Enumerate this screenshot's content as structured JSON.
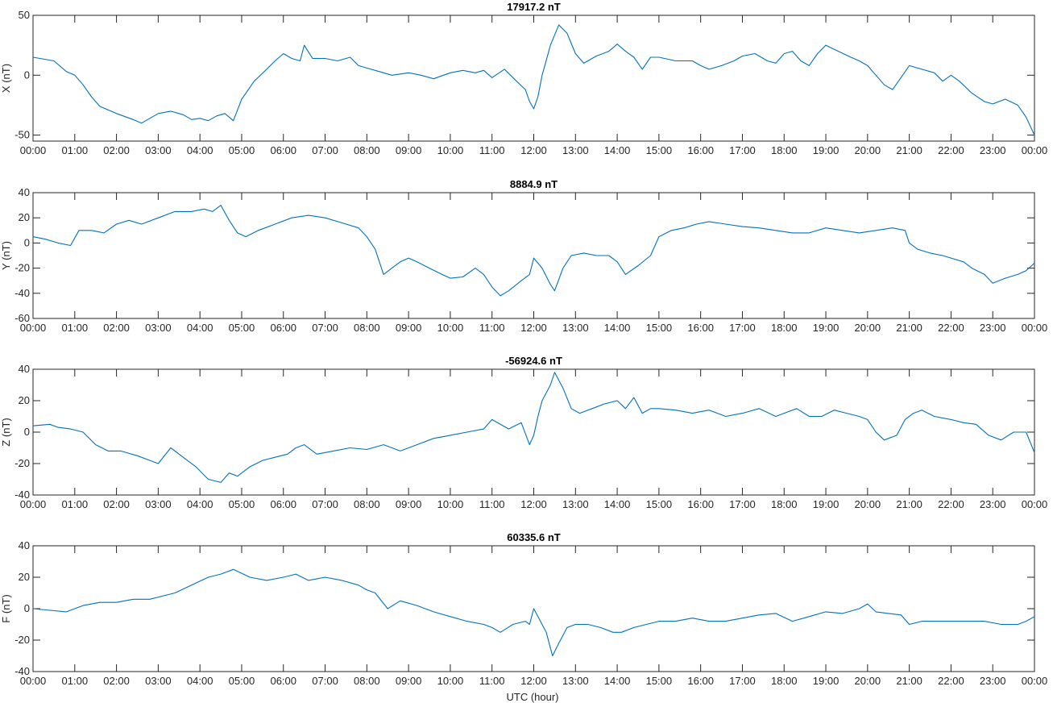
{
  "figure": {
    "xlabel": "UTC (hour)",
    "line_color": "#0072BD",
    "axis_color": "#262626"
  },
  "chart_data": [
    {
      "type": "line",
      "title": "17917.2 nT",
      "ylabel": "X (nT)",
      "ylim": [
        -55,
        50
      ],
      "yticks": [
        -50,
        0,
        50
      ],
      "xlim": [
        0,
        24
      ],
      "xtick_labels": [
        "00:00",
        "01:00",
        "02:00",
        "03:00",
        "04:00",
        "05:00",
        "06:00",
        "07:00",
        "08:00",
        "09:00",
        "10:00",
        "11:00",
        "12:00",
        "13:00",
        "14:00",
        "15:00",
        "16:00",
        "17:00",
        "18:00",
        "19:00",
        "20:00",
        "21:00",
        "22:00",
        "23:00",
        "00:00"
      ],
      "series": [
        {
          "x": [
            0,
            0.5,
            0.8,
            1.0,
            1.2,
            1.4,
            1.6,
            2.0,
            2.4,
            2.6,
            2.8,
            3.0,
            3.3,
            3.6,
            3.8,
            4.0,
            4.2,
            4.4,
            4.6,
            4.8,
            5.0,
            5.3,
            5.6,
            5.8,
            6.0,
            6.2,
            6.4,
            6.5,
            6.7,
            7.0,
            7.3,
            7.6,
            7.8,
            8.0,
            8.3,
            8.6,
            9.0,
            9.3,
            9.6,
            10.0,
            10.3,
            10.6,
            10.8,
            11.0,
            11.3,
            11.5,
            11.8,
            11.9,
            12.0,
            12.1,
            12.2,
            12.4,
            12.6,
            12.8,
            13.0,
            13.2,
            13.5,
            13.8,
            14.0,
            14.2,
            14.4,
            14.6,
            14.8,
            15.0,
            15.4,
            15.8,
            16.0,
            16.2,
            16.5,
            16.8,
            17.0,
            17.3,
            17.6,
            17.8,
            18.0,
            18.2,
            18.4,
            18.6,
            18.8,
            19.0,
            19.3,
            19.6,
            19.8,
            20.0,
            20.2,
            20.4,
            20.6,
            20.8,
            21.0,
            21.3,
            21.6,
            21.8,
            22.0,
            22.2,
            22.5,
            22.8,
            23.0,
            23.3,
            23.6,
            23.8,
            24.0
          ],
          "y": [
            15,
            12,
            3,
            0,
            -8,
            -18,
            -26,
            -32,
            -37,
            -40,
            -36,
            -32,
            -30,
            -33,
            -37,
            -36,
            -38,
            -34,
            -32,
            -38,
            -20,
            -5,
            5,
            12,
            18,
            14,
            12,
            25,
            14,
            14,
            12,
            15,
            8,
            6,
            3,
            0,
            2,
            0,
            -3,
            2,
            4,
            2,
            4,
            -2,
            5,
            -2,
            -12,
            -22,
            -28,
            -18,
            0,
            25,
            42,
            35,
            18,
            10,
            16,
            20,
            26,
            20,
            15,
            5,
            15,
            15,
            12,
            12,
            8,
            5,
            8,
            12,
            16,
            18,
            12,
            10,
            18,
            20,
            12,
            8,
            18,
            25,
            20,
            15,
            12,
            8,
            0,
            -8,
            -12,
            -2,
            8,
            5,
            2,
            -5,
            0,
            -5,
            -15,
            -22,
            -24,
            -20,
            -25,
            -35,
            -50
          ]
        }
      ]
    },
    {
      "type": "line",
      "title": "8884.9 nT",
      "ylabel": "Y (nT)",
      "ylim": [
        -60,
        40
      ],
      "yticks": [
        -60,
        -40,
        -20,
        0,
        20,
        40
      ],
      "xlim": [
        0,
        24
      ],
      "xtick_labels": [
        "00:00",
        "01:00",
        "02:00",
        "03:00",
        "04:00",
        "05:00",
        "06:00",
        "07:00",
        "08:00",
        "09:00",
        "10:00",
        "11:00",
        "12:00",
        "13:00",
        "14:00",
        "15:00",
        "16:00",
        "17:00",
        "18:00",
        "19:00",
        "20:00",
        "21:00",
        "22:00",
        "23:00",
        "00:00"
      ],
      "series": [
        {
          "x": [
            0,
            0.3,
            0.6,
            0.9,
            1.1,
            1.4,
            1.7,
            2.0,
            2.3,
            2.6,
            3.0,
            3.4,
            3.8,
            4.1,
            4.3,
            4.5,
            4.7,
            4.9,
            5.1,
            5.4,
            5.8,
            6.2,
            6.6,
            7.0,
            7.4,
            7.8,
            8.0,
            8.2,
            8.4,
            8.6,
            8.8,
            9.0,
            9.2,
            9.5,
            9.8,
            10.0,
            10.3,
            10.6,
            10.8,
            11.0,
            11.2,
            11.4,
            11.7,
            11.9,
            12.0,
            12.2,
            12.4,
            12.5,
            12.7,
            12.9,
            13.2,
            13.5,
            13.8,
            14.0,
            14.2,
            14.5,
            14.8,
            15.0,
            15.3,
            15.6,
            15.9,
            16.2,
            16.6,
            17.0,
            17.4,
            17.8,
            18.2,
            18.6,
            19.0,
            19.4,
            19.8,
            20.2,
            20.6,
            20.9,
            21.0,
            21.2,
            21.5,
            21.8,
            22.0,
            22.3,
            22.5,
            22.8,
            23.0,
            23.3,
            23.6,
            23.8,
            24.0
          ],
          "y": [
            5,
            3,
            0,
            -2,
            10,
            10,
            8,
            15,
            18,
            15,
            20,
            25,
            25,
            27,
            25,
            30,
            18,
            8,
            5,
            10,
            15,
            20,
            22,
            20,
            16,
            12,
            5,
            -5,
            -25,
            -20,
            -15,
            -12,
            -15,
            -20,
            -25,
            -28,
            -27,
            -20,
            -25,
            -35,
            -42,
            -38,
            -30,
            -25,
            -12,
            -20,
            -33,
            -38,
            -20,
            -10,
            -8,
            -10,
            -10,
            -15,
            -25,
            -18,
            -10,
            5,
            10,
            12,
            15,
            17,
            15,
            13,
            12,
            10,
            8,
            8,
            12,
            10,
            8,
            10,
            12,
            10,
            0,
            -5,
            -8,
            -10,
            -12,
            -15,
            -20,
            -25,
            -32,
            -28,
            -25,
            -22,
            -16
          ]
        }
      ]
    },
    {
      "type": "line",
      "title": "-56924.6 nT",
      "ylabel": "Z (nT)",
      "ylim": [
        -40,
        40
      ],
      "yticks": [
        -40,
        -20,
        0,
        20,
        40
      ],
      "xlim": [
        0,
        24
      ],
      "xtick_labels": [
        "00:00",
        "01:00",
        "02:00",
        "03:00",
        "04:00",
        "05:00",
        "06:00",
        "07:00",
        "08:00",
        "09:00",
        "10:00",
        "11:00",
        "12:00",
        "13:00",
        "14:00",
        "15:00",
        "16:00",
        "17:00",
        "18:00",
        "19:00",
        "20:00",
        "21:00",
        "22:00",
        "23:00",
        "00:00"
      ],
      "series": [
        {
          "x": [
            0,
            0.4,
            0.6,
            0.9,
            1.2,
            1.5,
            1.8,
            2.1,
            2.5,
            2.8,
            3.0,
            3.3,
            3.6,
            3.9,
            4.2,
            4.5,
            4.7,
            4.9,
            5.2,
            5.5,
            5.8,
            6.1,
            6.3,
            6.5,
            6.8,
            7.2,
            7.6,
            8.0,
            8.4,
            8.8,
            9.2,
            9.6,
            10.0,
            10.4,
            10.8,
            11.0,
            11.4,
            11.7,
            11.9,
            12.0,
            12.1,
            12.2,
            12.4,
            12.5,
            12.7,
            12.9,
            13.1,
            13.4,
            13.7,
            14.0,
            14.2,
            14.4,
            14.6,
            14.8,
            15.0,
            15.4,
            15.8,
            16.2,
            16.6,
            17.0,
            17.4,
            17.8,
            18.0,
            18.3,
            18.6,
            18.9,
            19.2,
            19.5,
            19.8,
            20.0,
            20.2,
            20.4,
            20.7,
            20.9,
            21.1,
            21.3,
            21.6,
            22.0,
            22.3,
            22.6,
            22.9,
            23.2,
            23.5,
            23.8,
            24.0
          ],
          "y": [
            4,
            5,
            3,
            2,
            0,
            -8,
            -12,
            -12,
            -15,
            -18,
            -20,
            -10,
            -16,
            -22,
            -30,
            -32,
            -26,
            -28,
            -22,
            -18,
            -16,
            -14,
            -10,
            -8,
            -14,
            -12,
            -10,
            -11,
            -8,
            -12,
            -8,
            -4,
            -2,
            0,
            2,
            8,
            2,
            6,
            -8,
            -2,
            10,
            20,
            30,
            38,
            28,
            15,
            12,
            15,
            18,
            20,
            15,
            22,
            12,
            15,
            15,
            14,
            12,
            14,
            10,
            12,
            15,
            10,
            12,
            15,
            10,
            10,
            14,
            12,
            10,
            8,
            0,
            -5,
            -2,
            8,
            12,
            14,
            10,
            8,
            6,
            5,
            -2,
            -5,
            0,
            0,
            -13
          ]
        }
      ]
    },
    {
      "type": "line",
      "title": "60335.6 nT",
      "ylabel": "F (nT)",
      "ylim": [
        -40,
        40
      ],
      "yticks": [
        -40,
        -20,
        0,
        20,
        40
      ],
      "xlim": [
        0,
        24
      ],
      "xtick_labels": [
        "00:00",
        "01:00",
        "02:00",
        "03:00",
        "04:00",
        "05:00",
        "06:00",
        "07:00",
        "08:00",
        "09:00",
        "10:00",
        "11:00",
        "12:00",
        "13:00",
        "14:00",
        "15:00",
        "16:00",
        "17:00",
        "18:00",
        "19:00",
        "20:00",
        "21:00",
        "22:00",
        "23:00",
        "00:00"
      ],
      "series": [
        {
          "x": [
            0,
            0.4,
            0.8,
            1.2,
            1.6,
            2.0,
            2.4,
            2.8,
            3.1,
            3.4,
            3.8,
            4.2,
            4.5,
            4.8,
            5.2,
            5.6,
            6.0,
            6.3,
            6.6,
            7.0,
            7.4,
            7.8,
            8.0,
            8.2,
            8.5,
            8.8,
            9.2,
            9.6,
            10.0,
            10.4,
            10.8,
            11.0,
            11.2,
            11.5,
            11.8,
            11.9,
            12.0,
            12.1,
            12.3,
            12.45,
            12.6,
            12.8,
            13.0,
            13.3,
            13.6,
            13.9,
            14.1,
            14.4,
            14.7,
            15.0,
            15.4,
            15.8,
            16.2,
            16.6,
            17.0,
            17.4,
            17.8,
            18.2,
            18.6,
            19.0,
            19.4,
            19.8,
            20.0,
            20.2,
            20.5,
            20.8,
            21.0,
            21.3,
            21.6,
            22.0,
            22.4,
            22.8,
            23.2,
            23.6,
            23.8,
            24.0
          ],
          "y": [
            0,
            -1,
            -2,
            2,
            4,
            4,
            6,
            6,
            8,
            10,
            15,
            20,
            22,
            25,
            20,
            18,
            20,
            22,
            18,
            20,
            18,
            15,
            12,
            10,
            0,
            5,
            2,
            -2,
            -5,
            -8,
            -10,
            -12,
            -15,
            -10,
            -8,
            -10,
            0,
            -5,
            -15,
            -30,
            -22,
            -12,
            -10,
            -10,
            -12,
            -15,
            -15,
            -12,
            -10,
            -8,
            -8,
            -6,
            -8,
            -8,
            -6,
            -4,
            -3,
            -8,
            -5,
            -2,
            -3,
            0,
            3,
            -2,
            -3,
            -4,
            -10,
            -8,
            -8,
            -8,
            -8,
            -8,
            -10,
            -10,
            -8,
            -5
          ]
        }
      ]
    }
  ]
}
